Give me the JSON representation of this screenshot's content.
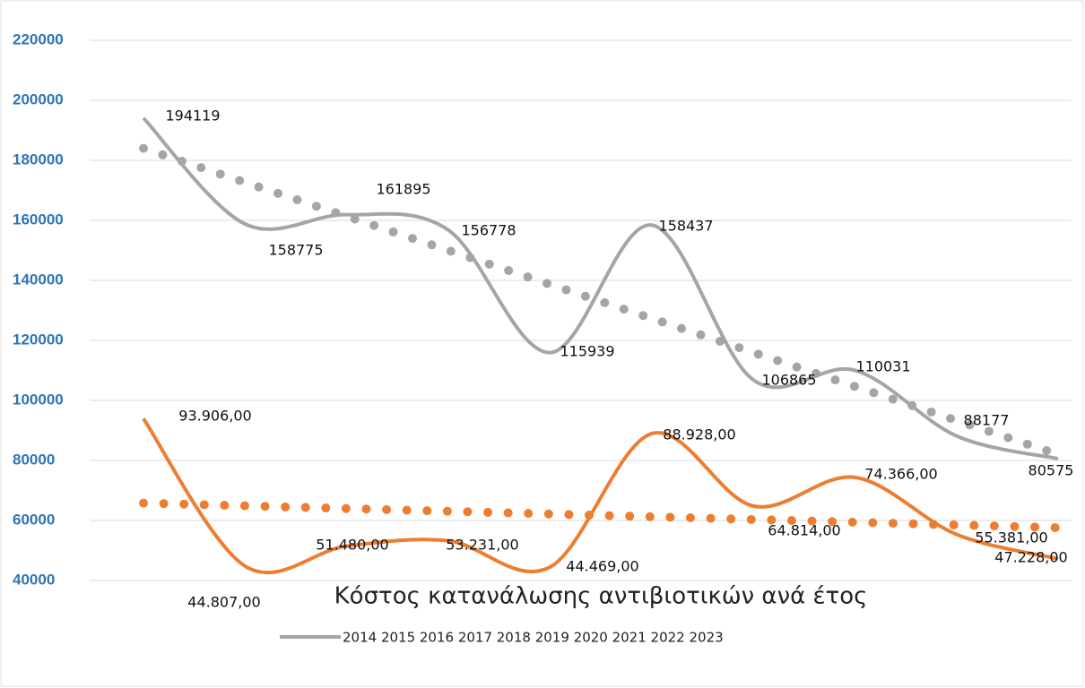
{
  "chart_data": {
    "type": "line",
    "title": "Κόστος κατανάλωσης αντιβιοτικών ανά έτος",
    "ylim": [
      40000,
      220000
    ],
    "yticks": [
      40000,
      60000,
      80000,
      100000,
      120000,
      140000,
      160000,
      180000,
      200000,
      220000
    ],
    "grid": true,
    "smooth": true,
    "series": [
      {
        "name": "2014 2015 2016 2017 2018 2019 2020 2021 2022 2023",
        "color": "#a5a5a5",
        "values": [
          194119,
          158775,
          161895,
          156778,
          115939,
          158437,
          106865,
          110031,
          88177,
          80575
        ],
        "trendline": [
          184000,
          82000
        ]
      },
      {
        "color": "#ed7d31",
        "values": [
          93906,
          44807,
          51480,
          53231,
          44469,
          88928,
          64814,
          74366,
          55381,
          47228
        ],
        "value_labels": [
          "93.906,00",
          "44.807,00",
          "51.480,00",
          "53.231,00",
          "44.469,00",
          "88.928,00",
          "64.814,00",
          "74.366,00",
          "55.381,00",
          "47.228,00"
        ],
        "trendline": [
          65800,
          57600
        ]
      }
    ]
  }
}
